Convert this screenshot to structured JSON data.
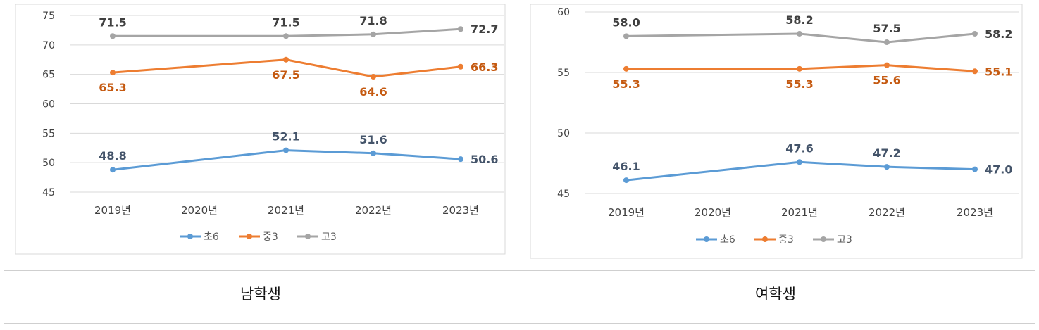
{
  "panels": [
    {
      "caption": "남학생"
    },
    {
      "caption": "여학생"
    }
  ],
  "colors": {
    "초6": "#5b9bd5",
    "중3": "#ed7d31",
    "고3": "#a5a5a5",
    "label_초6": "#44546a",
    "label_중3": "#c55a11",
    "label_고3": "#404040"
  },
  "chart_data": [
    {
      "type": "line",
      "title": "남학생",
      "categories": [
        "2019년",
        "2020년",
        "2021년",
        "2022년",
        "2023년"
      ],
      "ylim": [
        45,
        75
      ],
      "yticks": [
        45,
        50,
        55,
        60,
        65,
        70,
        75
      ],
      "series": [
        {
          "name": "초6",
          "x": [
            0,
            2,
            3,
            4
          ],
          "values": [
            48.8,
            52.1,
            51.6,
            50.6
          ],
          "labels": [
            "48.8",
            "52.1",
            "51.6",
            "50.6"
          ],
          "label_pos": [
            "above",
            "above",
            "above",
            "right"
          ]
        },
        {
          "name": "중3",
          "x": [
            0,
            2,
            3,
            4
          ],
          "values": [
            65.3,
            67.5,
            64.6,
            66.3
          ],
          "labels": [
            "65.3",
            "67.5",
            "64.6",
            "66.3"
          ],
          "label_pos": [
            "below",
            "below",
            "below",
            "right"
          ]
        },
        {
          "name": "고3",
          "x": [
            0,
            2,
            3,
            4
          ],
          "values": [
            71.5,
            71.5,
            71.8,
            72.7
          ],
          "labels": [
            "71.5",
            "71.5",
            "71.8",
            "72.7"
          ],
          "label_pos": [
            "above",
            "above",
            "above",
            "right"
          ]
        }
      ],
      "legend": [
        "초6",
        "중3",
        "고3"
      ],
      "legend_position": "bottom"
    },
    {
      "type": "line",
      "title": "여학생",
      "categories": [
        "2019년",
        "2020년",
        "2021년",
        "2022년",
        "2023년"
      ],
      "ylim": [
        45,
        60
      ],
      "yticks": [
        45,
        50,
        55,
        60
      ],
      "series": [
        {
          "name": "초6",
          "x": [
            0,
            2,
            3,
            4
          ],
          "values": [
            46.1,
            47.6,
            47.2,
            47.0
          ],
          "labels": [
            "46.1",
            "47.6",
            "47.2",
            "47.0"
          ],
          "label_pos": [
            "above",
            "above",
            "above",
            "right"
          ]
        },
        {
          "name": "중3",
          "x": [
            0,
            2,
            3,
            4
          ],
          "values": [
            55.3,
            55.3,
            55.6,
            55.1
          ],
          "labels": [
            "55.3",
            "55.3",
            "55.6",
            "55.1"
          ],
          "label_pos": [
            "below",
            "below",
            "below",
            "right"
          ]
        },
        {
          "name": "고3",
          "x": [
            0,
            2,
            3,
            4
          ],
          "values": [
            58.0,
            58.2,
            57.5,
            58.2
          ],
          "labels": [
            "58.0",
            "58.2",
            "57.5",
            "58.2"
          ],
          "label_pos": [
            "above",
            "above",
            "above",
            "right"
          ]
        }
      ],
      "legend": [
        "초6",
        "중3",
        "고3"
      ],
      "legend_position": "bottom"
    }
  ]
}
